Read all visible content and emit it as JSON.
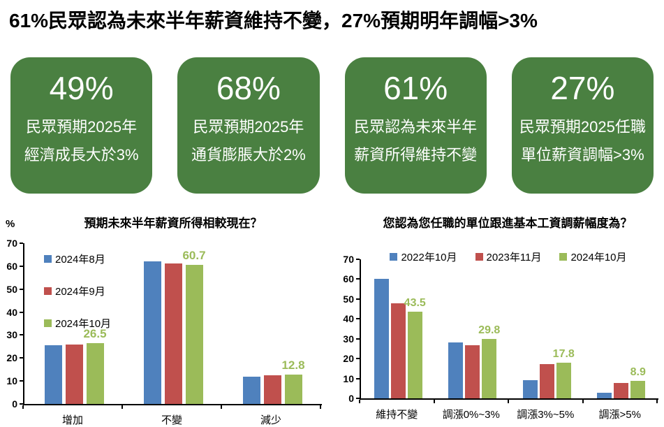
{
  "page": {
    "title": "61%民眾認為未來半年薪資維持不變，27%預期明年調幅>3%"
  },
  "colors": {
    "box_green": "#4a8041",
    "series_blue": "#4f81bd",
    "series_red": "#c0504d",
    "series_green": "#9bbb59",
    "axis": "#000000"
  },
  "stat_cards": [
    {
      "value": "49%",
      "line1": "民眾預期2025年",
      "line2": "經濟成長大於3%"
    },
    {
      "value": "68%",
      "line1": "民眾預期2025年",
      "line2": "通貨膨脹大於2%"
    },
    {
      "value": "61%",
      "line1": "民眾認為未來半年",
      "line2": "薪資所得維持不變"
    },
    {
      "value": "27%",
      "line1": "民眾預期2025任職",
      "line2": "單位薪資調幅>3%"
    }
  ],
  "chart_data": [
    {
      "type": "bar",
      "title": "預期未來半年薪資所得相較現在？",
      "ylabel": "%",
      "xlabel": "",
      "ylim": [
        0,
        70
      ],
      "yticks": [
        0,
        10,
        20,
        30,
        40,
        50,
        60,
        70
      ],
      "grid": false,
      "legend_position": "inside-top-left",
      "categories": [
        "增加",
        "不變",
        "減少"
      ],
      "series": [
        {
          "name": "2024年8月",
          "color": "#4f81bd",
          "values": [
            25.5,
            62.2,
            11.9
          ]
        },
        {
          "name": "2024年9月",
          "color": "#c0504d",
          "values": [
            25.9,
            61.3,
            12.4
          ]
        },
        {
          "name": "2024年10月",
          "color": "#9bbb59",
          "values": [
            26.5,
            60.7,
            12.8
          ],
          "data_labels": [
            "26.5",
            "60.7",
            "12.8"
          ]
        }
      ]
    },
    {
      "type": "bar",
      "title": "您認為您任職的單位跟進基本工資調薪幅度為？",
      "ylabel": "",
      "xlabel": "",
      "ylim": [
        0,
        70
      ],
      "yticks": [
        0,
        10,
        20,
        30,
        40,
        50,
        60,
        70
      ],
      "grid": false,
      "legend_position": "top",
      "categories": [
        "維持不變",
        "調漲0%~3%",
        "調漲3%~5%",
        "調漲>5%"
      ],
      "series": [
        {
          "name": "2022年10月",
          "color": "#4f81bd",
          "values": [
            60.2,
            28.3,
            9.0,
            2.7
          ]
        },
        {
          "name": "2023年11月",
          "color": "#c0504d",
          "values": [
            48.0,
            26.9,
            17.4,
            7.6
          ]
        },
        {
          "name": "2024年10月",
          "color": "#9bbb59",
          "values": [
            43.5,
            29.8,
            17.8,
            8.9
          ],
          "data_labels": [
            "43.5",
            "29.8",
            "17.8",
            "8.9"
          ]
        }
      ]
    }
  ]
}
